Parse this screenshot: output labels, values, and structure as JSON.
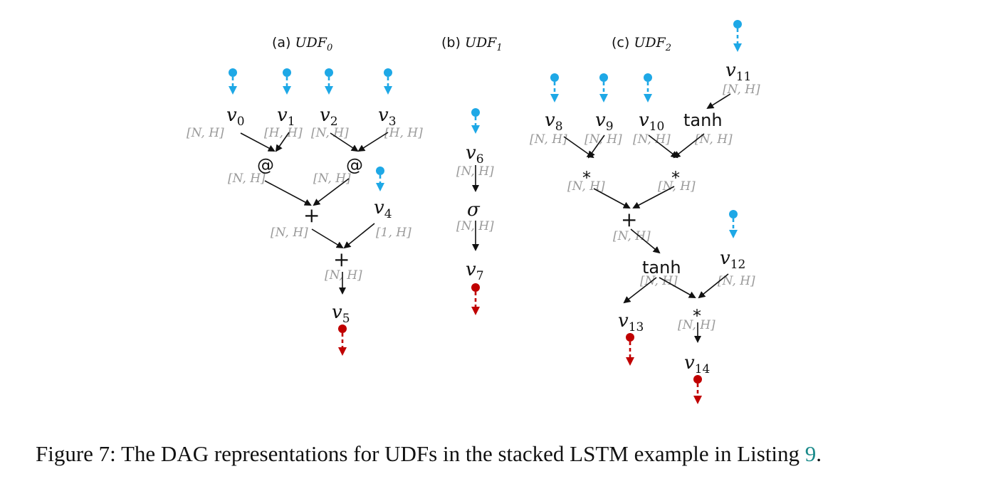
{
  "colors": {
    "input": "#1ea8e6",
    "output": "#c00000",
    "shape": "#9a9a9a",
    "link": "#1a8a8a"
  },
  "panels": [
    {
      "prefix": "(a) ",
      "name": "UDF",
      "sub": "0"
    },
    {
      "prefix": "(b) ",
      "name": "UDF",
      "sub": "1"
    },
    {
      "prefix": "(c) ",
      "name": "UDF",
      "sub": "2"
    }
  ],
  "vars": [
    {
      "b": "v",
      "s": "0"
    },
    {
      "b": "v",
      "s": "1"
    },
    {
      "b": "v",
      "s": "2"
    },
    {
      "b": "v",
      "s": "3"
    },
    {
      "b": "v",
      "s": "4"
    },
    {
      "b": "v",
      "s": "5"
    },
    {
      "b": "v",
      "s": "6"
    },
    {
      "b": "v",
      "s": "7"
    },
    {
      "b": "v",
      "s": "8"
    },
    {
      "b": "v",
      "s": "9"
    },
    {
      "b": "v",
      "s": "10"
    },
    {
      "b": "v",
      "s": "11"
    },
    {
      "b": "v",
      "s": "12"
    },
    {
      "b": "v",
      "s": "13"
    },
    {
      "b": "v",
      "s": "14"
    }
  ],
  "ops": {
    "matmul": "@",
    "add": "+",
    "sigmoid": "σ",
    "mul": "*",
    "tanh": "tanh"
  },
  "shapes": {
    "nh": "[N, H]",
    "hh": "[H, H]",
    "oneh": "[1, H]"
  },
  "caption": {
    "prefix": "Figure 7: The DAG representations for UDFs in the stacked LSTM example in Listing ",
    "ref": "9",
    "suffix": "."
  }
}
